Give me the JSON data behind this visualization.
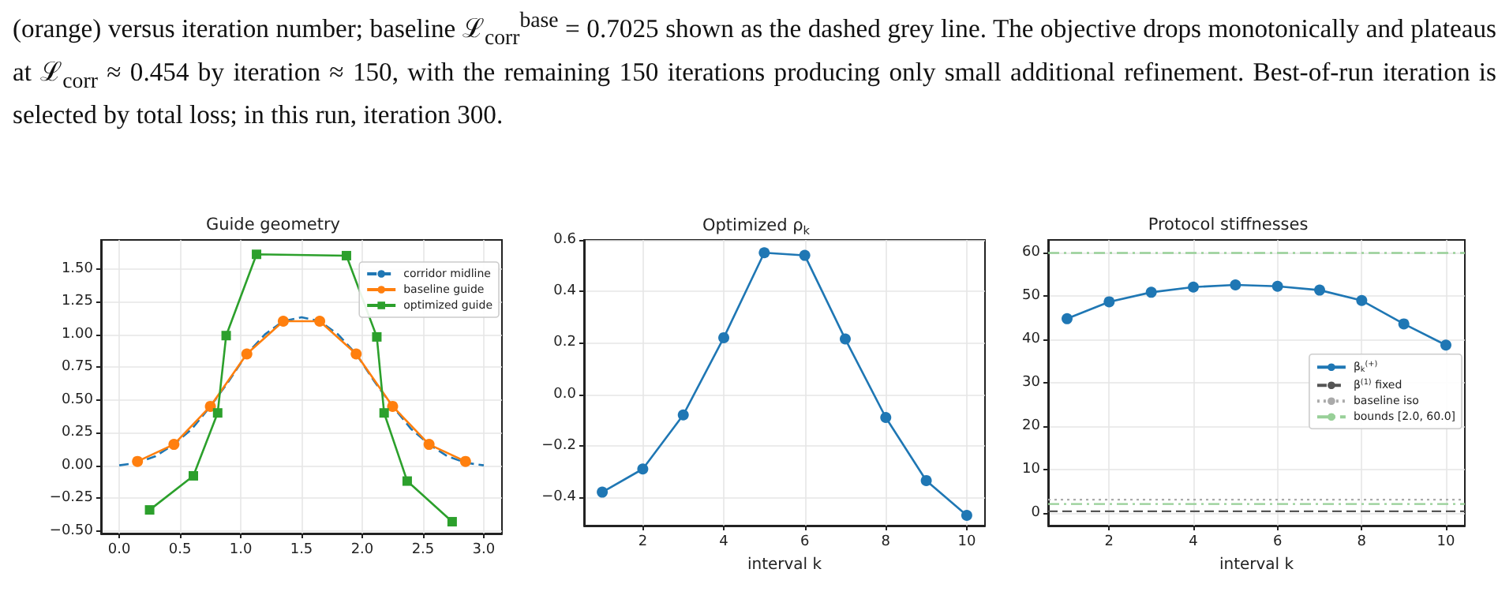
{
  "chart_data": [
    {
      "type": "line",
      "title": "Guide geometry",
      "annotations": [
        "(orange) versus iteration number; baseline ℒ$_{corr}$$^{base}$ = 0.7025 shown as the dashed grey line. The objective drops monotonically and plateaus at ℒ$_{corr}$ ≈ 0.454 by iteration ≈ 150, with the remaining 150 iterations producing only small additional refinement. Best-of-run iteration is selected by total loss; in this run, iteration 300."
      ],
      "xlim": [
        -0.15,
        3.15
      ],
      "xticks": [
        {
          "value": 0,
          "label": "0.0"
        },
        {
          "value": 0.5,
          "label": "0.5"
        },
        {
          "value": 1,
          "label": "1.0"
        },
        {
          "value": 1.5,
          "label": "1.5"
        },
        {
          "value": 2,
          "label": "2.0"
        },
        {
          "value": 2.5,
          "label": "2.5"
        },
        {
          "value": 3,
          "label": "3.0"
        }
      ],
      "ylim": [
        -0.52,
        1.72
      ],
      "yticks": [
        {
          "value": -0.5,
          "label": "−0.50"
        },
        {
          "value": -0.25,
          "label": "−0.25"
        },
        {
          "value": 0,
          "label": "0.00"
        },
        {
          "value": 0.25,
          "label": "0.25"
        },
        {
          "value": 0.5,
          "label": "0.50"
        },
        {
          "value": 0.75,
          "label": "0.75"
        },
        {
          "value": 1,
          "label": "1.00"
        },
        {
          "value": 1.25,
          "label": "1.25"
        },
        {
          "value": 1.5,
          "label": "1.50"
        }
      ],
      "grid": true,
      "legend": "top right",
      "series": [
        {
          "name": "corridor midline",
          "color": "#1f77b4",
          "marker": "none",
          "line_style": "dashed",
          "x": [
            0,
            0.15,
            0.3,
            0.45,
            0.6,
            0.75,
            0.9,
            1.05,
            1.2,
            1.35,
            1.5,
            1.65,
            1.8,
            1.95,
            2.1,
            2.25,
            2.4,
            2.55,
            2.7,
            2.85,
            3
          ],
          "values": [
            0,
            0.02,
            0.07,
            0.16,
            0.28,
            0.45,
            0.64,
            0.85,
            1.0,
            1.1,
            1.13,
            1.1,
            1.0,
            0.85,
            0.64,
            0.45,
            0.28,
            0.16,
            0.07,
            0.02,
            0
          ]
        },
        {
          "name": "baseline guide",
          "color": "#ff7f0e",
          "marker": "circle",
          "line_style": "solid",
          "x": [
            0.15,
            0.45,
            0.75,
            1.05,
            1.35,
            1.65,
            1.95,
            2.25,
            2.55,
            2.85
          ],
          "values": [
            0.03,
            0.16,
            0.45,
            0.85,
            1.1,
            1.1,
            0.85,
            0.45,
            0.16,
            0.03
          ]
        },
        {
          "name": "optimized guide",
          "color": "#2ca02c",
          "marker": "square",
          "line_style": "solid",
          "x": [
            0.25,
            0.61,
            0.81,
            0.88,
            1.13,
            1.87,
            2.12,
            2.18,
            2.37,
            2.74
          ],
          "values": [
            -0.34,
            -0.08,
            0.4,
            0.99,
            1.61,
            1.6,
            0.98,
            0.4,
            -0.12,
            -0.43
          ]
        }
      ]
    },
    {
      "type": "line",
      "title": "Optimized ρ$_{k}$",
      "xlabel": "interval k",
      "xlim": [
        0.55,
        10.45
      ],
      "xticks": [
        2,
        4,
        6,
        8,
        10
      ],
      "ylim": [
        -0.51,
        0.6
      ],
      "yticks": [
        {
          "value": -0.4,
          "label": "−0.4"
        },
        {
          "value": -0.2,
          "label": "−0.2"
        },
        {
          "value": 0,
          "label": "0.0"
        },
        {
          "value": 0.2,
          "label": "0.2"
        },
        {
          "value": 0.4,
          "label": "0.4"
        },
        {
          "value": 0.6,
          "label": "0.6"
        }
      ],
      "grid": true,
      "marker": "circle",
      "x": [
        1,
        2,
        3,
        4,
        5,
        6,
        7,
        8,
        9,
        10
      ],
      "series": [
        {
          "color": "#1f77b4",
          "values": [
            -0.38,
            -0.29,
            -0.08,
            0.22,
            0.55,
            0.54,
            0.215,
            -0.09,
            -0.335,
            -0.47
          ]
        }
      ]
    },
    {
      "type": "line",
      "title": "Protocol stiffnesses",
      "xlabel": "interval k",
      "xlim": [
        0.55,
        10.45
      ],
      "xticks": [
        2,
        4,
        6,
        8,
        10
      ],
      "ylim": [
        -3,
        63
      ],
      "yticks": [
        0,
        10,
        20,
        30,
        40,
        50,
        60
      ],
      "grid": true,
      "legend": "right",
      "marker": "circle",
      "x": [
        1,
        2,
        3,
        4,
        5,
        6,
        7,
        8,
        9,
        10
      ],
      "series": [
        {
          "name": "β$_{k}$$^{(+)}$",
          "color": "#1f77b4",
          "values": [
            44.8,
            48.7,
            50.9,
            52.1,
            52.6,
            52.3,
            51.4,
            49.0,
            43.6,
            38.7
          ]
        }
      ],
      "ref_lines": [
        {
          "axis": "y",
          "value": 0.3,
          "label": "β$^{(1)}$ fixed",
          "color": "#555555",
          "line_style": "dashed"
        },
        {
          "axis": "y",
          "value": 3,
          "label": "baseline iso",
          "color": "#aaaaaa",
          "line_style": "dotted"
        },
        {
          "axis": "y",
          "value": 2,
          "label": "bounds [2.0, 60.0]",
          "color": "#98d098",
          "line_style": "dashdot"
        },
        {
          "axis": "y",
          "value": 60,
          "color": "#98d098",
          "line_style": "dashdot"
        }
      ]
    }
  ]
}
